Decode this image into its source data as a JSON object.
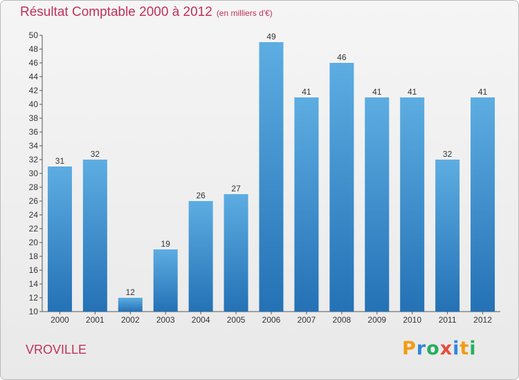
{
  "title": "Résultat Comptable 2000 à 2012",
  "subtitle": "(en milliers d'€)",
  "commune": "VROVILLE",
  "brand": {
    "letters": [
      "P",
      "r",
      "o",
      "x",
      "i",
      "t",
      "i"
    ],
    "colors": [
      "#f39c12",
      "#2e86de",
      "#27ae60",
      "#e74c3c",
      "#2e86de",
      "#f39c12",
      "#27ae60"
    ]
  },
  "colors": {
    "title": "#c0315a",
    "bar_top": "#5dade2",
    "bar_bottom": "#2471b5"
  },
  "chart_data": {
    "type": "bar",
    "title": "Résultat Comptable 2000 à 2012",
    "categories": [
      "2000",
      "2001",
      "2002",
      "2003",
      "2004",
      "2005",
      "2006",
      "2007",
      "2008",
      "2009",
      "2010",
      "2011",
      "2012"
    ],
    "values": [
      31,
      32,
      12,
      19,
      26,
      27,
      49,
      41,
      46,
      41,
      41,
      32,
      41
    ],
    "ylim": [
      10,
      50
    ],
    "ytick_step": 2,
    "xlabel": "",
    "ylabel": "",
    "grid": false,
    "data_labels": true
  }
}
